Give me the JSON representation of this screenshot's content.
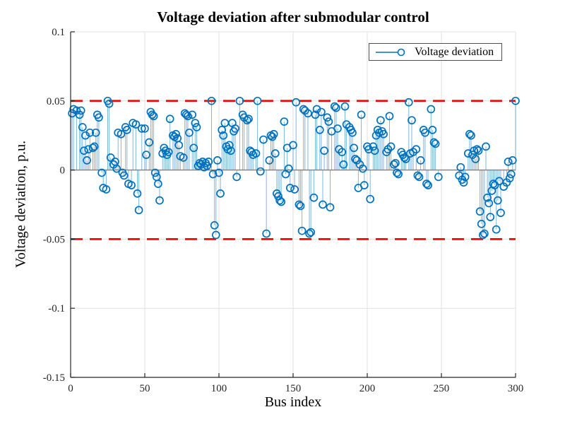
{
  "figure": {
    "title": "Voltage deviation after submodular control"
  },
  "legend": {
    "label": "Voltage deviation"
  },
  "colors": {
    "stem_line": "#0072BD",
    "stem_line_opacity": 0.5,
    "marker_stroke": "#0072BD",
    "limit_line": "#FF0000",
    "grid": "#E0E0E0",
    "axis": "#262626",
    "baseline": "#808080",
    "text": "#262626"
  },
  "chart_data": {
    "type": "scatter",
    "subtype": "stem",
    "title": "Voltage deviation after submodular control",
    "xlabel": "Bus index",
    "ylabel": "Voltage deviation, p.u.",
    "legend_label": "Voltage deviation",
    "legend_position": "top-right",
    "grid": true,
    "xlim": [
      0,
      300
    ],
    "ylim": [
      -0.15,
      0.1
    ],
    "xticks": [
      0,
      50,
      100,
      150,
      200,
      250,
      300
    ],
    "xtick_labels": [
      "0",
      "50",
      "100",
      "150",
      "200",
      "250",
      "300"
    ],
    "yticks": [
      0.1,
      0.05,
      0,
      -0.05,
      -0.1,
      -0.15
    ],
    "ytick_labels": [
      "0.1",
      "0.05",
      "0",
      "-0.05",
      "-0.1",
      "-0.15"
    ],
    "limit_lines": [
      0.05,
      -0.05
    ],
    "points": [
      [
        1,
        0.041
      ],
      [
        2,
        0.044
      ],
      [
        4,
        0.043
      ],
      [
        6,
        0.04
      ],
      [
        7,
        0.043
      ],
      [
        8,
        0.031
      ],
      [
        9,
        0.014
      ],
      [
        10,
        0.025
      ],
      [
        11,
        0.007
      ],
      [
        12,
        0.015
      ],
      [
        13,
        0.027
      ],
      [
        15,
        0.016
      ],
      [
        16,
        0.017
      ],
      [
        17,
        0.027
      ],
      [
        18,
        0.04
      ],
      [
        19,
        0.038
      ],
      [
        21,
        -0.002
      ],
      [
        22,
        -0.013
      ],
      [
        24,
        -0.014
      ],
      [
        25,
        0.05
      ],
      [
        26,
        0.048
      ],
      [
        27,
        0.009
      ],
      [
        29,
        0.004
      ],
      [
        30,
        0.006
      ],
      [
        31,
        0.001
      ],
      [
        32,
        0.027
      ],
      [
        34,
        0.026
      ],
      [
        35,
        -0.002
      ],
      [
        36,
        -0.004
      ],
      [
        37,
        0.031
      ],
      [
        38,
        0.029
      ],
      [
        39,
        -0.01
      ],
      [
        41,
        -0.011
      ],
      [
        42,
        0.034
      ],
      [
        44,
        0.033
      ],
      [
        45,
        -0.017
      ],
      [
        46,
        -0.029
      ],
      [
        48,
        0.03
      ],
      [
        50,
        0.03
      ],
      [
        51,
        0.011
      ],
      [
        53,
        0.02
      ],
      [
        54,
        0.042
      ],
      [
        55,
        0.04
      ],
      [
        56,
        0.039
      ],
      [
        57,
        -0.002
      ],
      [
        58,
        -0.005
      ],
      [
        59,
        -0.01
      ],
      [
        60,
        -0.022
      ],
      [
        62,
        0.012
      ],
      [
        63,
        0.016
      ],
      [
        64,
        0.014
      ],
      [
        65,
        0.011
      ],
      [
        66,
        0.013
      ],
      [
        67,
        0.037
      ],
      [
        69,
        0.025
      ],
      [
        70,
        0.024
      ],
      [
        71,
        0.026
      ],
      [
        72,
        0.023
      ],
      [
        73,
        0.018
      ],
      [
        74,
        0.01
      ],
      [
        76,
        0.009
      ],
      [
        77,
        0.041
      ],
      [
        78,
        0.04
      ],
      [
        79,
        0.039
      ],
      [
        80,
        0.027
      ],
      [
        82,
        0.04
      ],
      [
        83,
        0.016
      ],
      [
        84,
        0.034
      ],
      [
        85,
        0.031
      ],
      [
        86,
        0.003
      ],
      [
        87,
        0.005
      ],
      [
        88,
        0.004
      ],
      [
        89,
        0.006
      ],
      [
        90,
        0.002
      ],
      [
        91,
        0.005
      ],
      [
        92,
        0.003
      ],
      [
        93,
        0.006
      ],
      [
        95,
        0.05
      ],
      [
        96,
        -0.003
      ],
      [
        97,
        -0.04
      ],
      [
        98,
        -0.047
      ],
      [
        99,
        0.007
      ],
      [
        100,
        -0.002
      ],
      [
        101,
        -0.017
      ],
      [
        102,
        0.029
      ],
      [
        103,
        0.025
      ],
      [
        104,
        0.034
      ],
      [
        105,
        0.017
      ],
      [
        106,
        0.015
      ],
      [
        107,
        0.018
      ],
      [
        108,
        0.014
      ],
      [
        109,
        0.034
      ],
      [
        110,
        0.028
      ],
      [
        111,
        0.03
      ],
      [
        112,
        -0.005
      ],
      [
        114,
        0.05
      ],
      [
        116,
        0.04
      ],
      [
        117,
        0.038
      ],
      [
        119,
        0.036
      ],
      [
        120,
        0.037
      ],
      [
        121,
        0.014
      ],
      [
        122,
        0.013
      ],
      [
        123,
        0.011
      ],
      [
        125,
        0.012
      ],
      [
        126,
        0.05
      ],
      [
        128,
        -0.001
      ],
      [
        130,
        0.022
      ],
      [
        132,
        -0.046
      ],
      [
        134,
        0.007
      ],
      [
        135,
        0.025
      ],
      [
        136,
        0.024
      ],
      [
        137,
        0.026
      ],
      [
        138,
        0.012
      ],
      [
        139,
        -0.017
      ],
      [
        140,
        -0.019
      ],
      [
        141,
        -0.022
      ],
      [
        142,
        -0.023
      ],
      [
        144,
        0.035
      ],
      [
        145,
        -0.003
      ],
      [
        146,
        0.016
      ],
      [
        147,
        0.001
      ],
      [
        148,
        -0.013
      ],
      [
        150,
        0.018
      ],
      [
        151,
        -0.014
      ],
      [
        152,
        0.049
      ],
      [
        154,
        -0.025
      ],
      [
        155,
        -0.026
      ],
      [
        156,
        -0.044
      ],
      [
        157,
        0.044
      ],
      [
        158,
        0.043
      ],
      [
        160,
        0.041
      ],
      [
        161,
        -0.046
      ],
      [
        162,
        -0.045
      ],
      [
        164,
        -0.02
      ],
      [
        165,
        0.04
      ],
      [
        166,
        0.044
      ],
      [
        168,
        0.029
      ],
      [
        169,
        0.042
      ],
      [
        170,
        -0.025
      ],
      [
        171,
        0.014
      ],
      [
        173,
        0.038
      ],
      [
        174,
        0.035
      ],
      [
        175,
        -0.027
      ],
      [
        176,
        0.028
      ],
      [
        178,
        0.046
      ],
      [
        179,
        0.045
      ],
      [
        180,
        0.03
      ],
      [
        181,
        0.015
      ],
      [
        183,
        0.013
      ],
      [
        184,
        0.004
      ],
      [
        185,
        0.046
      ],
      [
        186,
        0.033
      ],
      [
        188,
        0.031
      ],
      [
        189,
        0.029
      ],
      [
        190,
        0.027
      ],
      [
        191,
        0.016
      ],
      [
        192,
        0.008
      ],
      [
        193,
        0.007
      ],
      [
        194,
        -0.013
      ],
      [
        195,
        0.004
      ],
      [
        196,
        0.04
      ],
      [
        197,
        0.001
      ],
      [
        198,
        -0.011
      ],
      [
        200,
        0.017
      ],
      [
        201,
        0.015
      ],
      [
        202,
        -0.021
      ],
      [
        204,
        0.017
      ],
      [
        205,
        0.014
      ],
      [
        206,
        0.025
      ],
      [
        207,
        0.029
      ],
      [
        208,
        0.027
      ],
      [
        209,
        0.036
      ],
      [
        210,
        0.028
      ],
      [
        211,
        0.026
      ],
      [
        213,
        0.013
      ],
      [
        214,
        0.015
      ],
      [
        215,
        0.039
      ],
      [
        216,
        0.017
      ],
      [
        218,
        0.004
      ],
      [
        219,
        0.005
      ],
      [
        220,
        -0.002
      ],
      [
        221,
        -0.003
      ],
      [
        223,
        0.013
      ],
      [
        224,
        0.011
      ],
      [
        225,
        0.009
      ],
      [
        226,
        0.008
      ],
      [
        228,
        0.049
      ],
      [
        229,
        0.012
      ],
      [
        230,
        0.036
      ],
      [
        231,
        0.013
      ],
      [
        233,
        0.015
      ],
      [
        234,
        -0.004
      ],
      [
        235,
        -0.005
      ],
      [
        236,
        0.007
      ],
      [
        238,
        0.029
      ],
      [
        239,
        0.027
      ],
      [
        240,
        -0.01
      ],
      [
        241,
        -0.011
      ],
      [
        243,
        0.044
      ],
      [
        244,
        0.029
      ],
      [
        245,
        0.02
      ],
      [
        246,
        0.019
      ],
      [
        248,
        -0.005
      ],
      [
        262,
        -0.004
      ],
      [
        263,
        0.002
      ],
      [
        264,
        -0.007
      ],
      [
        265,
        -0.009
      ],
      [
        266,
        -0.005
      ],
      [
        268,
        0.012
      ],
      [
        269,
        0.026
      ],
      [
        270,
        0.025
      ],
      [
        271,
        0.011
      ],
      [
        272,
        0.014
      ],
      [
        273,
        0.008
      ],
      [
        274,
        0.015
      ],
      [
        275,
        0.014
      ],
      [
        276,
        -0.03
      ],
      [
        277,
        -0.039
      ],
      [
        278,
        -0.047
      ],
      [
        279,
        -0.046
      ],
      [
        280,
        0.017
      ],
      [
        281,
        -0.02
      ],
      [
        282,
        -0.024
      ],
      [
        283,
        -0.034
      ],
      [
        284,
        -0.015
      ],
      [
        285,
        -0.01
      ],
      [
        286,
        -0.011
      ],
      [
        287,
        -0.043
      ],
      [
        288,
        -0.022
      ],
      [
        289,
        -0.008
      ],
      [
        290,
        -0.031
      ],
      [
        292,
        -0.012
      ],
      [
        294,
        -0.009
      ],
      [
        295,
        0.006
      ],
      [
        296,
        -0.006
      ],
      [
        297,
        -0.003
      ],
      [
        298,
        0.007
      ],
      [
        300,
        0.05
      ]
    ]
  }
}
